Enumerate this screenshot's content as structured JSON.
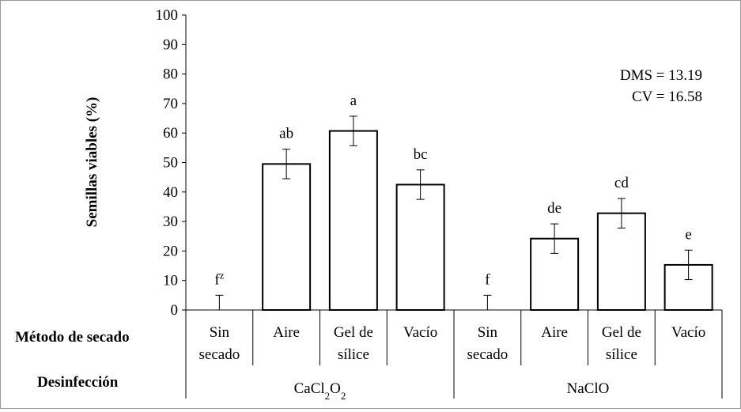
{
  "chart_data": {
    "type": "bar",
    "ylabel": "Semillas viables (%)",
    "ylim": [
      0,
      100
    ],
    "yticks": [
      0,
      10,
      20,
      30,
      40,
      50,
      60,
      70,
      80,
      90,
      100
    ],
    "row_labels": {
      "method": "Método de secado",
      "disinfection": "Desinfección"
    },
    "stats": [
      "DMS = 13.19",
      "CV = 16.58"
    ],
    "groups": [
      {
        "name": "CaCl2O2",
        "name_base": "CaCl",
        "sub1": "2",
        "name_mid": "O",
        "sub2": "2"
      },
      {
        "name": "NaClO",
        "name_base": "NaClO",
        "sub1": "",
        "name_mid": "",
        "sub2": ""
      }
    ],
    "bars": [
      {
        "group": 0,
        "method_lines": [
          "Sin",
          "secado"
        ],
        "value": 0,
        "error": 5,
        "letter": "f",
        "letter_sup": "z"
      },
      {
        "group": 0,
        "method_lines": [
          "Aire"
        ],
        "value": 49.5,
        "error": 5,
        "letter": "ab",
        "letter_sup": ""
      },
      {
        "group": 0,
        "method_lines": [
          "Gel de",
          "sílice"
        ],
        "value": 60.7,
        "error": 5,
        "letter": "a",
        "letter_sup": ""
      },
      {
        "group": 0,
        "method_lines": [
          "Vacío"
        ],
        "value": 42.5,
        "error": 5,
        "letter": "bc",
        "letter_sup": ""
      },
      {
        "group": 1,
        "method_lines": [
          "Sin",
          "secado"
        ],
        "value": 0,
        "error": 5,
        "letter": "f",
        "letter_sup": ""
      },
      {
        "group": 1,
        "method_lines": [
          "Aire"
        ],
        "value": 24.2,
        "error": 5,
        "letter": "de",
        "letter_sup": ""
      },
      {
        "group": 1,
        "method_lines": [
          "Gel de",
          "sílice"
        ],
        "value": 32.8,
        "error": 5,
        "letter": "cd",
        "letter_sup": ""
      },
      {
        "group": 1,
        "method_lines": [
          "Vacío"
        ],
        "value": 15.3,
        "error": 5,
        "letter": "e",
        "letter_sup": ""
      }
    ]
  }
}
